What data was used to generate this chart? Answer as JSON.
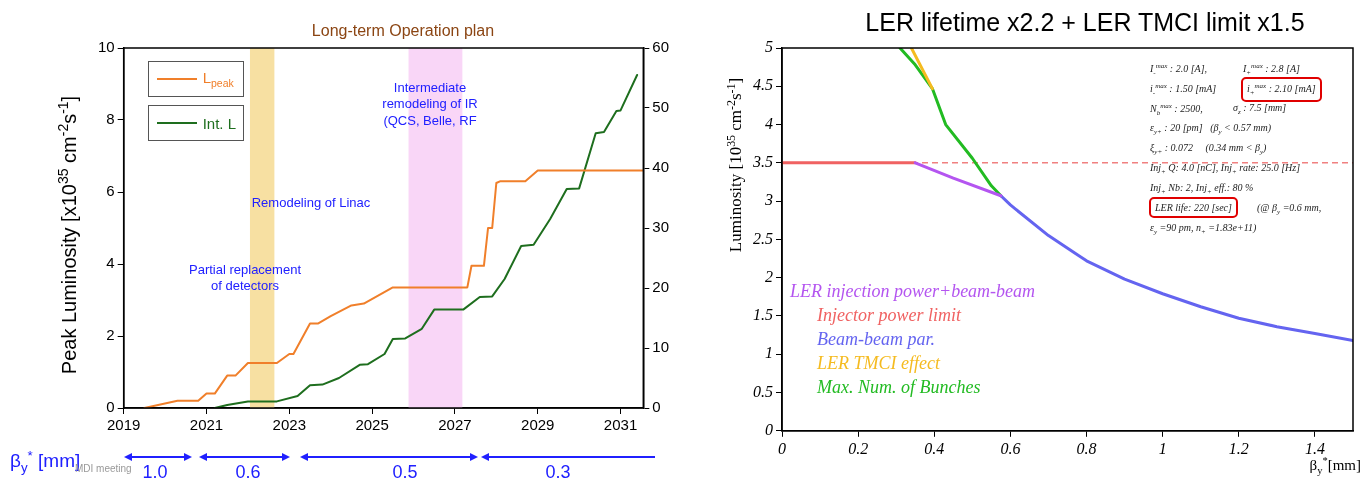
{
  "chart_data": [
    {
      "type": "line",
      "title": "Long-term Operation plan",
      "ylabel": "Peak Luminosity [x10$^{35}$ cm$^{-2}$s$^{-1}$]",
      "xlim": [
        2019,
        2031.55
      ],
      "xticks": [
        2019,
        2021,
        2023,
        2025,
        2027,
        2029,
        2031
      ],
      "ylim": [
        0,
        10
      ],
      "yticks": [
        0,
        2,
        4,
        6,
        8,
        10
      ],
      "y2lim": [
        0,
        60
      ],
      "y2ticks": [
        0,
        10,
        20,
        30,
        40,
        50,
        60
      ],
      "grid": false,
      "legend": "top left",
      "series": [
        {
          "name": "L$_{peak}$",
          "color": "#f07f2a",
          "x": [
            2019.5,
            2020.3,
            2020.8,
            2021.0,
            2021.2,
            2021.5,
            2021.7,
            2022.0,
            2022.7,
            2023.0,
            2023.1,
            2023.5,
            2023.7,
            2024.0,
            2024.5,
            2024.8,
            2025.5,
            2027.3,
            2027.4,
            2027.7,
            2027.8,
            2027.9,
            2028.0,
            2028.1,
            2028.7,
            2029.0,
            2031.55
          ],
          "values": [
            0,
            0.2,
            0.2,
            0.4,
            0.4,
            0.9,
            0.9,
            1.25,
            1.25,
            1.5,
            1.5,
            2.35,
            2.35,
            2.55,
            2.85,
            2.9,
            3.35,
            3.35,
            3.95,
            3.95,
            5.0,
            5.0,
            6.25,
            6.3,
            6.3,
            6.6,
            6.6
          ]
        },
        {
          "name": "Int. L",
          "color": "#1e6e1e",
          "axis": "y2",
          "x": [
            2021.2,
            2021.5,
            2022.0,
            2022.7,
            2023.2,
            2023.5,
            2023.8,
            2024.2,
            2024.7,
            2024.9,
            2025.3,
            2025.5,
            2025.8,
            2026.2,
            2026.5,
            2027.2,
            2027.6,
            2027.9,
            2028.2,
            2028.6,
            2028.9,
            2029.3,
            2029.7,
            2030.0,
            2030.4,
            2030.6,
            2030.9,
            2031.0,
            2031.4
          ],
          "values": [
            0,
            0.5,
            1.1,
            1.1,
            2,
            3.8,
            3.9,
            5,
            7.2,
            7.3,
            9,
            11.5,
            11.6,
            13.2,
            16.4,
            16.4,
            18.5,
            18.6,
            21.5,
            27,
            27.2,
            31.5,
            36.5,
            36.6,
            45.8,
            46,
            49.5,
            49.6,
            55.5
          ]
        }
      ],
      "bands": [
        {
          "axis": "x",
          "from": 2022.05,
          "to": 2022.64,
          "color": "#f7e0a2"
        },
        {
          "axis": "x",
          "from": 2025.88,
          "to": 2027.18,
          "color": "#f9d6f7"
        }
      ],
      "annotations": [
        "Partial replacement\nof detectors",
        "Remodeling of Linac",
        "Intermediate\nremodeling of IR\n(QCS, Belle, RF",
        "β$_{y}$$^{*}$ [mm]",
        "1.0",
        "0.6",
        "0.5",
        "0.3",
        "MDI meeting"
      ]
    },
    {
      "type": "line",
      "title": "LER lifetime x2.2 + LER TMCI limit x1.5",
      "ylabel": "Luminosity [10$^{35}$ cm$^{-2}$s$^{-1}$]",
      "xlabel": "β$_{y}$$^{*}$[mm]",
      "xlim": [
        0,
        1.5
      ],
      "xticks": [
        0,
        0.2,
        0.4,
        0.6,
        0.8,
        1,
        1.2,
        1.4
      ],
      "ylim": [
        0,
        5
      ],
      "yticks": [
        0,
        0.5,
        1,
        1.5,
        2,
        2.5,
        3,
        3.5,
        4,
        4.5,
        5
      ],
      "grid": false,
      "legend": "bottom left",
      "series": [
        {
          "name": "LER injection power+beam-beam",
          "color": "#b455f0",
          "x": [
            0.35,
            0.45,
            0.575
          ],
          "values": [
            3.5,
            3.3,
            3.07
          ]
        },
        {
          "name": "Injector power limit",
          "color": "#f06262",
          "x": [
            0,
            0.35
          ],
          "values": [
            3.5,
            3.5
          ]
        },
        {
          "name": "Beam-beam par.",
          "color": "#6464f0",
          "x": [
            0.575,
            0.6,
            0.7,
            0.8,
            0.9,
            1.0,
            1.1,
            1.2,
            1.3,
            1.4,
            1.5
          ],
          "values": [
            3.07,
            2.95,
            2.55,
            2.22,
            1.98,
            1.79,
            1.62,
            1.47,
            1.36,
            1.27,
            1.18
          ]
        },
        {
          "name": "LER TMCI effect",
          "color": "#f5bb20",
          "x": [
            0.34,
            0.395
          ],
          "values": [
            5,
            4.47
          ]
        },
        {
          "name": "Max. Num. of Bunches",
          "color": "#22bb22",
          "x": [
            0.31,
            0.35,
            0.395,
            0.43,
            0.5,
            0.55,
            0.575
          ],
          "values": [
            5,
            4.78,
            4.47,
            4.0,
            3.56,
            3.2,
            3.07
          ]
        }
      ],
      "ref_lines": [
        {
          "axis": "y",
          "value": 3.5,
          "color": "#f08080",
          "line_style": "dashed"
        }
      ],
      "annotations": [
        "I$_{-}$$^{max}$ : 2.0 [A],",
        "I$_{+}$$^{max}$ : 2.8 [A]",
        "i$_{-}$$^{max}$ : 1.50 [mA]",
        "i$_{+}$$^{max}$ : 2.10 [mA]",
        "N$_{b}$$^{max}$ : 2500,",
        "σ$_{z}$ : 7.5 [mm]",
        "ε$_{y+}$ : 20 [pm]   (β$_{y}$ < 0.57 mm)",
        "ξ$_{y+}$ : 0.072     (0.34 mm < β$_{y}$)",
        "Inj$_{+}$ Q: 4.0 [nC], Inj$_{+}$ rate: 25.0 [Hz]",
        "Inj$_{+}$ Nb: 2, Inj$_{+}$ eff.: 80 %",
        "LER life: 220 [sec]",
        "(@ β$_{y}$ =0.6 mm,",
        "ε$_{y}$ =90 pm, n$_{+}$ =1.83e+11)"
      ]
    }
  ]
}
